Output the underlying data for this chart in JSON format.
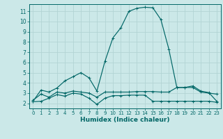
{
  "xlabel": "Humidex (Indice chaleur)",
  "ylabel": "",
  "background_color": "#cbe8e8",
  "grid_color": "#b2d4d4",
  "line_color": "#006666",
  "xlim": [
    -0.5,
    23.5
  ],
  "ylim": [
    1.5,
    11.7
  ],
  "yticks": [
    2,
    3,
    4,
    5,
    6,
    7,
    8,
    9,
    10,
    11
  ],
  "xticks": [
    0,
    1,
    2,
    3,
    4,
    5,
    6,
    7,
    8,
    9,
    10,
    11,
    12,
    13,
    14,
    15,
    16,
    17,
    18,
    19,
    20,
    21,
    22,
    23
  ],
  "series": [
    {
      "x": [
        0,
        1,
        2,
        3,
        4,
        5,
        6,
        7,
        8,
        9,
        10,
        11,
        12,
        13,
        14,
        15,
        16,
        17,
        18,
        19,
        20,
        21,
        22,
        23
      ],
      "y": [
        2.2,
        3.3,
        3.1,
        3.5,
        4.2,
        4.6,
        5.0,
        4.5,
        3.2,
        6.1,
        8.4,
        9.4,
        11.0,
        11.3,
        11.4,
        11.35,
        10.2,
        7.3,
        3.55,
        3.55,
        3.7,
        3.2,
        3.05,
        2.2
      ]
    },
    {
      "x": [
        0,
        1,
        2,
        3,
        4,
        5,
        6,
        7,
        8,
        9,
        10,
        11,
        12,
        13,
        14,
        15,
        16,
        17,
        18,
        19,
        20,
        21,
        22,
        23
      ],
      "y": [
        2.3,
        2.9,
        2.6,
        3.1,
        3.0,
        3.2,
        3.1,
        3.0,
        2.6,
        3.1,
        3.1,
        3.1,
        3.1,
        3.15,
        3.15,
        3.15,
        3.1,
        3.1,
        3.55,
        3.55,
        3.55,
        3.1,
        3.0,
        2.9
      ]
    },
    {
      "x": [
        0,
        1,
        2,
        3,
        4,
        5,
        6,
        7,
        8,
        9,
        10,
        11,
        12,
        13,
        14,
        15,
        16,
        17,
        18,
        19,
        20,
        21,
        22,
        23
      ],
      "y": [
        2.15,
        2.2,
        2.5,
        2.85,
        2.7,
        3.0,
        2.9,
        2.5,
        1.9,
        2.5,
        2.75,
        2.75,
        2.8,
        2.8,
        2.8,
        2.2,
        2.2,
        2.2,
        2.2,
        2.2,
        2.2,
        2.2,
        2.2,
        2.1
      ]
    }
  ]
}
